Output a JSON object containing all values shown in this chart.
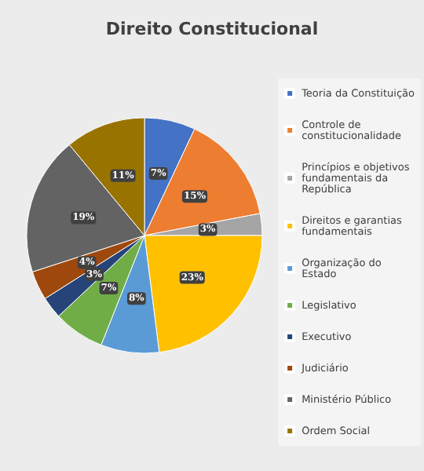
{
  "chart_data": {
    "type": "pie",
    "title": "Direito Constitucional",
    "categories": [
      "Teoria da Constituição",
      "Controle de constitucionalidade",
      "Princípios e objetivos fundamentais da República",
      "Direitos e garantias fundamentais",
      "Organização do Estado",
      "Legislativo",
      "Executivo",
      "Judiciário",
      "Ministério Público",
      "Ordem Social"
    ],
    "values": [
      7,
      15,
      3,
      23,
      8,
      7,
      3,
      4,
      19,
      11
    ],
    "value_labels": [
      "7%",
      "15%",
      "3%",
      "23%",
      "8%",
      "7%",
      "3%",
      "4%",
      "19%",
      "11%"
    ],
    "colors": [
      "#4472c4",
      "#ed7d31",
      "#a5a5a5",
      "#ffc000",
      "#5b9bd5",
      "#70ad47",
      "#264478",
      "#9e480e",
      "#636363",
      "#997300"
    ],
    "legend": "right"
  }
}
